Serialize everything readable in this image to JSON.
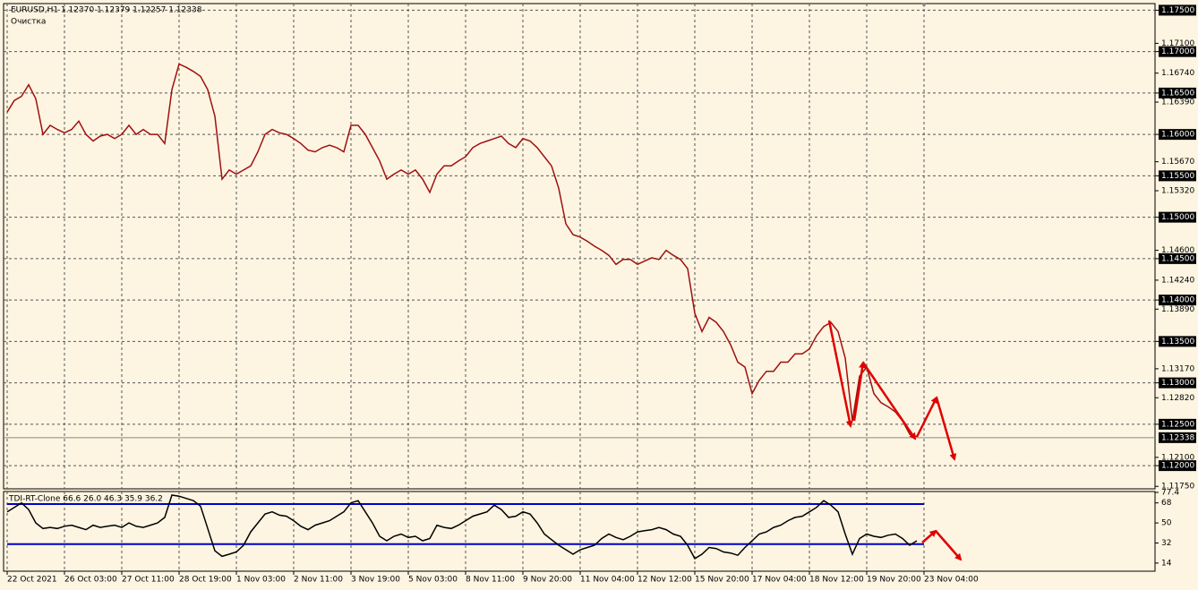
{
  "chart_data": [
    {
      "type": "line",
      "title": "EURUSD,H1 1.12370 1.12379 1.12257 1.12338",
      "subtitle": "Очистка",
      "color": "#a01010",
      "values": [
        1.1627,
        1.1641,
        1.1646,
        1.166,
        1.1643,
        1.16,
        1.1611,
        1.1606,
        1.1602,
        1.1606,
        1.1616,
        1.16,
        1.1592,
        1.1598,
        1.16,
        1.1595,
        1.16,
        1.1611,
        1.16,
        1.1606,
        1.16,
        1.16,
        1.1589,
        1.1654,
        1.1685,
        1.1681,
        1.1676,
        1.167,
        1.1654,
        1.1622,
        1.1546,
        1.1557,
        1.1552,
        1.1557,
        1.1562,
        1.1579,
        1.16,
        1.1606,
        1.1602,
        1.16,
        1.1595,
        1.1589,
        1.1581,
        1.1579,
        1.1584,
        1.1587,
        1.1584,
        1.1579,
        1.1611,
        1.1611,
        1.16,
        1.1584,
        1.1568,
        1.1546,
        1.1552,
        1.1557,
        1.1552,
        1.1557,
        1.1546,
        1.153,
        1.1552,
        1.1562,
        1.1562,
        1.1568,
        1.1573,
        1.1584,
        1.1589,
        1.1592,
        1.1595,
        1.1598,
        1.1589,
        1.1584,
        1.1595,
        1.1592,
        1.1584,
        1.1573,
        1.1562,
        1.1535,
        1.1492,
        1.1479,
        1.1476,
        1.1471,
        1.1465,
        1.146,
        1.1454,
        1.1443,
        1.1449,
        1.1449,
        1.1443,
        1.1447,
        1.1451,
        1.1449,
        1.146,
        1.1454,
        1.1449,
        1.1438,
        1.1384,
        1.1362,
        1.1379,
        1.1373,
        1.1362,
        1.1346,
        1.1325,
        1.1319,
        1.1287,
        1.1303,
        1.1314,
        1.1314,
        1.1325,
        1.1325,
        1.1335,
        1.1335,
        1.1341,
        1.1357,
        1.1368,
        1.1373,
        1.1362,
        1.133,
        1.1254,
        1.1308,
        1.1319,
        1.1287,
        1.1276,
        1.1271,
        1.1265,
        1.1254,
        1.1238,
        1.1235
      ],
      "ylim": [
        1.1172,
        1.1758
      ],
      "yticks": [
        {
          "value": 1.175,
          "label": "1.17500"
        },
        {
          "value": 1.171,
          "label": "1.17100"
        },
        {
          "value": 1.17,
          "label": "1.17000"
        },
        {
          "value": 1.1674,
          "label": "1.16740"
        },
        {
          "value": 1.165,
          "label": "1.16500"
        },
        {
          "value": 1.1639,
          "label": "1.16390"
        },
        {
          "value": 1.16,
          "label": "1.16000"
        },
        {
          "value": 1.1567,
          "label": "1.15670"
        },
        {
          "value": 1.155,
          "label": "1.15500"
        },
        {
          "value": 1.1532,
          "label": "1.15320"
        },
        {
          "value": 1.15,
          "label": "1.15000"
        },
        {
          "value": 1.146,
          "label": "1.14600"
        },
        {
          "value": 1.145,
          "label": "1.14500"
        },
        {
          "value": 1.1424,
          "label": "1.14240"
        },
        {
          "value": 1.14,
          "label": "1.14000"
        },
        {
          "value": 1.1389,
          "label": "1.13890"
        },
        {
          "value": 1.135,
          "label": "1.13500"
        },
        {
          "value": 1.1317,
          "label": "1.13170"
        },
        {
          "value": 1.13,
          "label": "1.13000"
        },
        {
          "value": 1.1282,
          "label": "1.12820"
        },
        {
          "value": 1.125,
          "label": "1.12500"
        },
        {
          "value": 1.121,
          "label": "1.12100"
        },
        {
          "value": 1.12,
          "label": "1.12000"
        },
        {
          "value": 1.1175,
          "label": "1.11750"
        }
      ],
      "last_price": {
        "value": 1.12338,
        "label": "1.12338"
      },
      "xlim": [
        -0.5,
        160.25
      ],
      "xticks": [
        {
          "value": 0,
          "label": "22 Oct 2021"
        },
        {
          "value": 8,
          "label": "26 Oct 03:00"
        },
        {
          "value": 16,
          "label": "27 Oct 11:00"
        },
        {
          "value": 24,
          "label": "28 Oct 19:00"
        },
        {
          "value": 32,
          "label": "1 Nov 03:00"
        },
        {
          "value": 40,
          "label": "2 Nov 11:00"
        },
        {
          "value": 48,
          "label": "3 Nov 19:00"
        },
        {
          "value": 56,
          "label": "5 Nov 03:00"
        },
        {
          "value": 64,
          "label": "8 Nov 11:00"
        },
        {
          "value": 72,
          "label": "9 Nov 20:00"
        },
        {
          "value": 80,
          "label": "11 Nov 04:00"
        },
        {
          "value": 88,
          "label": "12 Nov 12:00"
        },
        {
          "value": 96,
          "label": "15 Nov 20:00"
        },
        {
          "value": 104,
          "label": "17 Nov 04:00"
        },
        {
          "value": 112,
          "label": "18 Nov 12:00"
        },
        {
          "value": 120,
          "label": "19 Nov 20:00"
        },
        {
          "value": 128,
          "label": "23 Nov 04:00"
        }
      ],
      "grid": true
    },
    {
      "type": "line",
      "title": "TDI-RT-Clone 66.6 26.0 46.3 35.9 36.2",
      "color": "#000000",
      "values": [
        60,
        64,
        68,
        62,
        50,
        45,
        46,
        45,
        47,
        48,
        46,
        44,
        48,
        46,
        47,
        48,
        46,
        50,
        47,
        46,
        48,
        50,
        55,
        75,
        74,
        72,
        70,
        65,
        45,
        25,
        20,
        22,
        24,
        30,
        42,
        50,
        58,
        60,
        57,
        56,
        52,
        47,
        44,
        48,
        50,
        52,
        56,
        60,
        68,
        70,
        60,
        50,
        38,
        34,
        38,
        40,
        37,
        38,
        34,
        36,
        48,
        46,
        45,
        48,
        52,
        56,
        58,
        60,
        66,
        62,
        55,
        56,
        60,
        58,
        50,
        40,
        35,
        30,
        26,
        22,
        26,
        28,
        30,
        36,
        40,
        37,
        35,
        38,
        42,
        43,
        44,
        46,
        44,
        40,
        38,
        30,
        18,
        22,
        28,
        27,
        24,
        23,
        21,
        28,
        34,
        40,
        42,
        46,
        48,
        52,
        55,
        56,
        60,
        64,
        70,
        66,
        60,
        40,
        22,
        36,
        40,
        38,
        37,
        39,
        40,
        36,
        30,
        34
      ],
      "bands": [
        67,
        31
      ],
      "band_color": "#0000cc",
      "ylim": [
        6.7,
        78.2
      ],
      "yticks": [
        77.4,
        68,
        50,
        32,
        14
      ],
      "xlim": [
        -0.5,
        160.25
      ]
    }
  ]
}
